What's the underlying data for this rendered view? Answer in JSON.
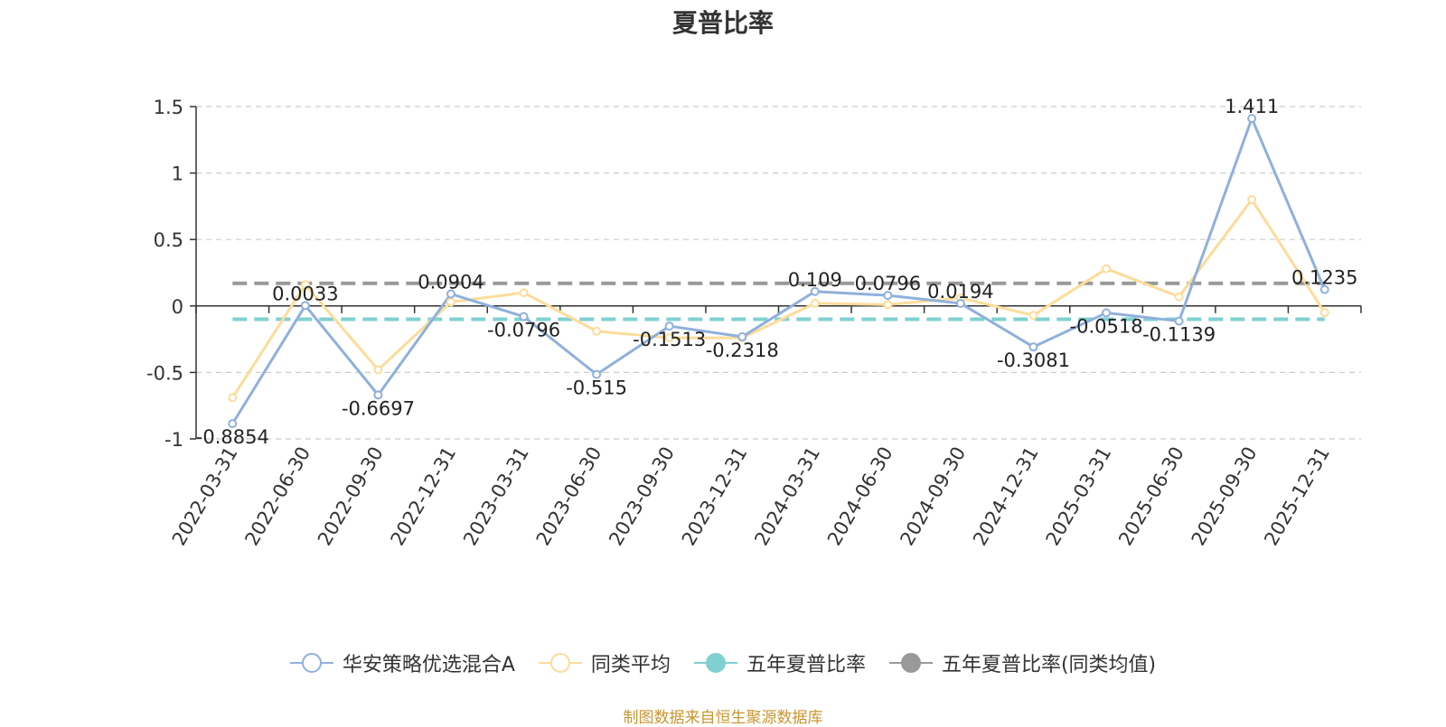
{
  "chart_data": {
    "type": "line",
    "title": "夏普比率",
    "categories": [
      "2022-03-31",
      "2022-06-30",
      "2022-09-30",
      "2022-12-31",
      "2023-03-31",
      "2023-06-30",
      "2023-09-30",
      "2023-12-31",
      "2024-03-31",
      "2024-06-30",
      "2024-09-30",
      "2024-12-31",
      "2025-03-31",
      "2025-06-30",
      "2025-09-30",
      "2025-12-31"
    ],
    "ylim": [
      -1,
      1.5
    ],
    "yticks": [
      "-1",
      "-0.5",
      "0",
      "0.5",
      "1",
      "1.5"
    ],
    "grid": true,
    "legend_position": "bottom",
    "series": [
      {
        "name": "华安策略优选混合A",
        "color": "#8fb0dc",
        "values": [
          -0.8854,
          0.0033,
          -0.6697,
          0.0904,
          -0.0796,
          -0.515,
          -0.1513,
          -0.2318,
          0.109,
          0.0796,
          0.0194,
          -0.3081,
          -0.0518,
          -0.1139,
          1.411,
          0.1235
        ],
        "labels": [
          "-0.8854",
          "0.0033",
          "-0.6697",
          "0.0904",
          "-0.0796",
          "-0.515",
          "-0.1513",
          "-0.2318",
          "0.109",
          "0.0796",
          "0.0194",
          "-0.3081",
          "-0.0518",
          "-0.1139",
          "1.411",
          "0.1235"
        ]
      },
      {
        "name": "同类平均",
        "color": "#fddc9a",
        "values": [
          -0.69,
          0.16,
          -0.48,
          0.03,
          0.1,
          -0.19,
          -0.24,
          -0.24,
          0.02,
          0.01,
          0.06,
          -0.07,
          0.28,
          0.07,
          0.8,
          -0.05
        ]
      }
    ],
    "reference_lines": [
      {
        "name": "五年夏普比率",
        "color": "#7fd1d1",
        "value": -0.1
      },
      {
        "name": "五年夏普比率(同类均值)",
        "color": "#999999",
        "value": 0.17
      }
    ]
  },
  "legend": {
    "items": [
      {
        "name": "华安策略优选混合A",
        "color": "#8fb0dc",
        "style": "hollow"
      },
      {
        "name": "同类平均",
        "color": "#fddc9a",
        "style": "hollow"
      },
      {
        "name": "五年夏普比率",
        "color": "#7fd1d1",
        "style": "filled"
      },
      {
        "name": "五年夏普比率(同类均值)",
        "color": "#999999",
        "style": "filled"
      }
    ]
  },
  "footer": {
    "source": "制图数据来自恒生聚源数据库"
  }
}
